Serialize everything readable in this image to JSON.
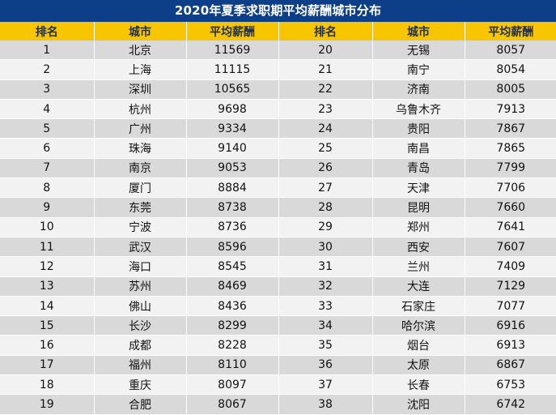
{
  "title": "2020年夏季求职期平均薪酬城市分布",
  "headers": [
    "排名",
    "城市",
    "平均薪酬",
    "排名",
    "城市",
    "平均薪酬"
  ],
  "rows": [
    {
      "rank_left": "1",
      "city_left": "北京",
      "salary_left": "11569",
      "rank_right": "20",
      "city_right": "无锡",
      "salary_right": "8057"
    },
    {
      "rank_left": "2",
      "city_left": "上海",
      "salary_left": "11115",
      "rank_right": "21",
      "city_right": "南宁",
      "salary_right": "8054"
    },
    {
      "rank_left": "3",
      "city_left": "深圳",
      "salary_left": "10565",
      "rank_right": "22",
      "city_right": "济南",
      "salary_right": "8005"
    },
    {
      "rank_left": "4",
      "city_left": "杭州",
      "salary_left": "9698",
      "rank_right": "23",
      "city_right": "乌鲁木齐",
      "salary_right": "7913"
    },
    {
      "rank_left": "5",
      "city_left": "广州",
      "salary_left": "9334",
      "rank_right": "24",
      "city_right": "贵阳",
      "salary_right": "7867"
    },
    {
      "rank_left": "6",
      "city_left": "珠海",
      "salary_left": "9140",
      "rank_right": "25",
      "city_right": "南昌",
      "salary_right": "7865"
    },
    {
      "rank_left": "7",
      "city_left": "南京",
      "salary_left": "9053",
      "rank_right": "26",
      "city_right": "青岛",
      "salary_right": "7799"
    },
    {
      "rank_left": "8",
      "city_left": "厦门",
      "salary_left": "8884",
      "rank_right": "27",
      "city_right": "天津",
      "salary_right": "7706"
    },
    {
      "rank_left": "9",
      "city_left": "东莞",
      "salary_left": "8738",
      "rank_right": "28",
      "city_right": "昆明",
      "salary_right": "7660"
    },
    {
      "rank_left": "10",
      "city_left": "宁波",
      "salary_left": "8736",
      "rank_right": "29",
      "city_right": "郑州",
      "salary_right": "7641"
    },
    {
      "rank_left": "11",
      "city_left": "武汉",
      "salary_left": "8596",
      "rank_right": "30",
      "city_right": "西安",
      "salary_right": "7607"
    },
    {
      "rank_left": "12",
      "city_left": "海口",
      "salary_left": "8545",
      "rank_right": "31",
      "city_right": "兰州",
      "salary_right": "7409"
    },
    {
      "rank_left": "13",
      "city_left": "苏州",
      "salary_left": "8469",
      "rank_right": "32",
      "city_right": "大连",
      "salary_right": "7129"
    },
    {
      "rank_left": "14",
      "city_left": "佛山",
      "salary_left": "8436",
      "rank_right": "33",
      "city_right": "石家庄",
      "salary_right": "7077"
    },
    {
      "rank_left": "15",
      "city_left": "长沙",
      "salary_left": "8299",
      "rank_right": "34",
      "city_right": "哈尔滨",
      "salary_right": "6916"
    },
    {
      "rank_left": "16",
      "city_left": "成都",
      "salary_left": "8228",
      "rank_right": "35",
      "city_right": "烟台",
      "salary_right": "6913"
    },
    {
      "rank_left": "17",
      "city_left": "福州",
      "salary_left": "8110",
      "rank_right": "36",
      "city_right": "太原",
      "salary_right": "6867"
    },
    {
      "rank_left": "18",
      "city_left": "重庆",
      "salary_left": "8097",
      "rank_right": "37",
      "city_right": "长春",
      "salary_right": "6753"
    },
    {
      "rank_left": "19",
      "city_left": "合肥",
      "salary_left": "8067",
      "rank_right": "38",
      "city_right": "沈阳",
      "salary_right": "6742"
    }
  ],
  "colors": {
    "title_background": "#0d3f88",
    "header_background": "#f7c600",
    "row_odd_background": "#d9d9d9",
    "row_even_background": "#f2f2f2"
  }
}
